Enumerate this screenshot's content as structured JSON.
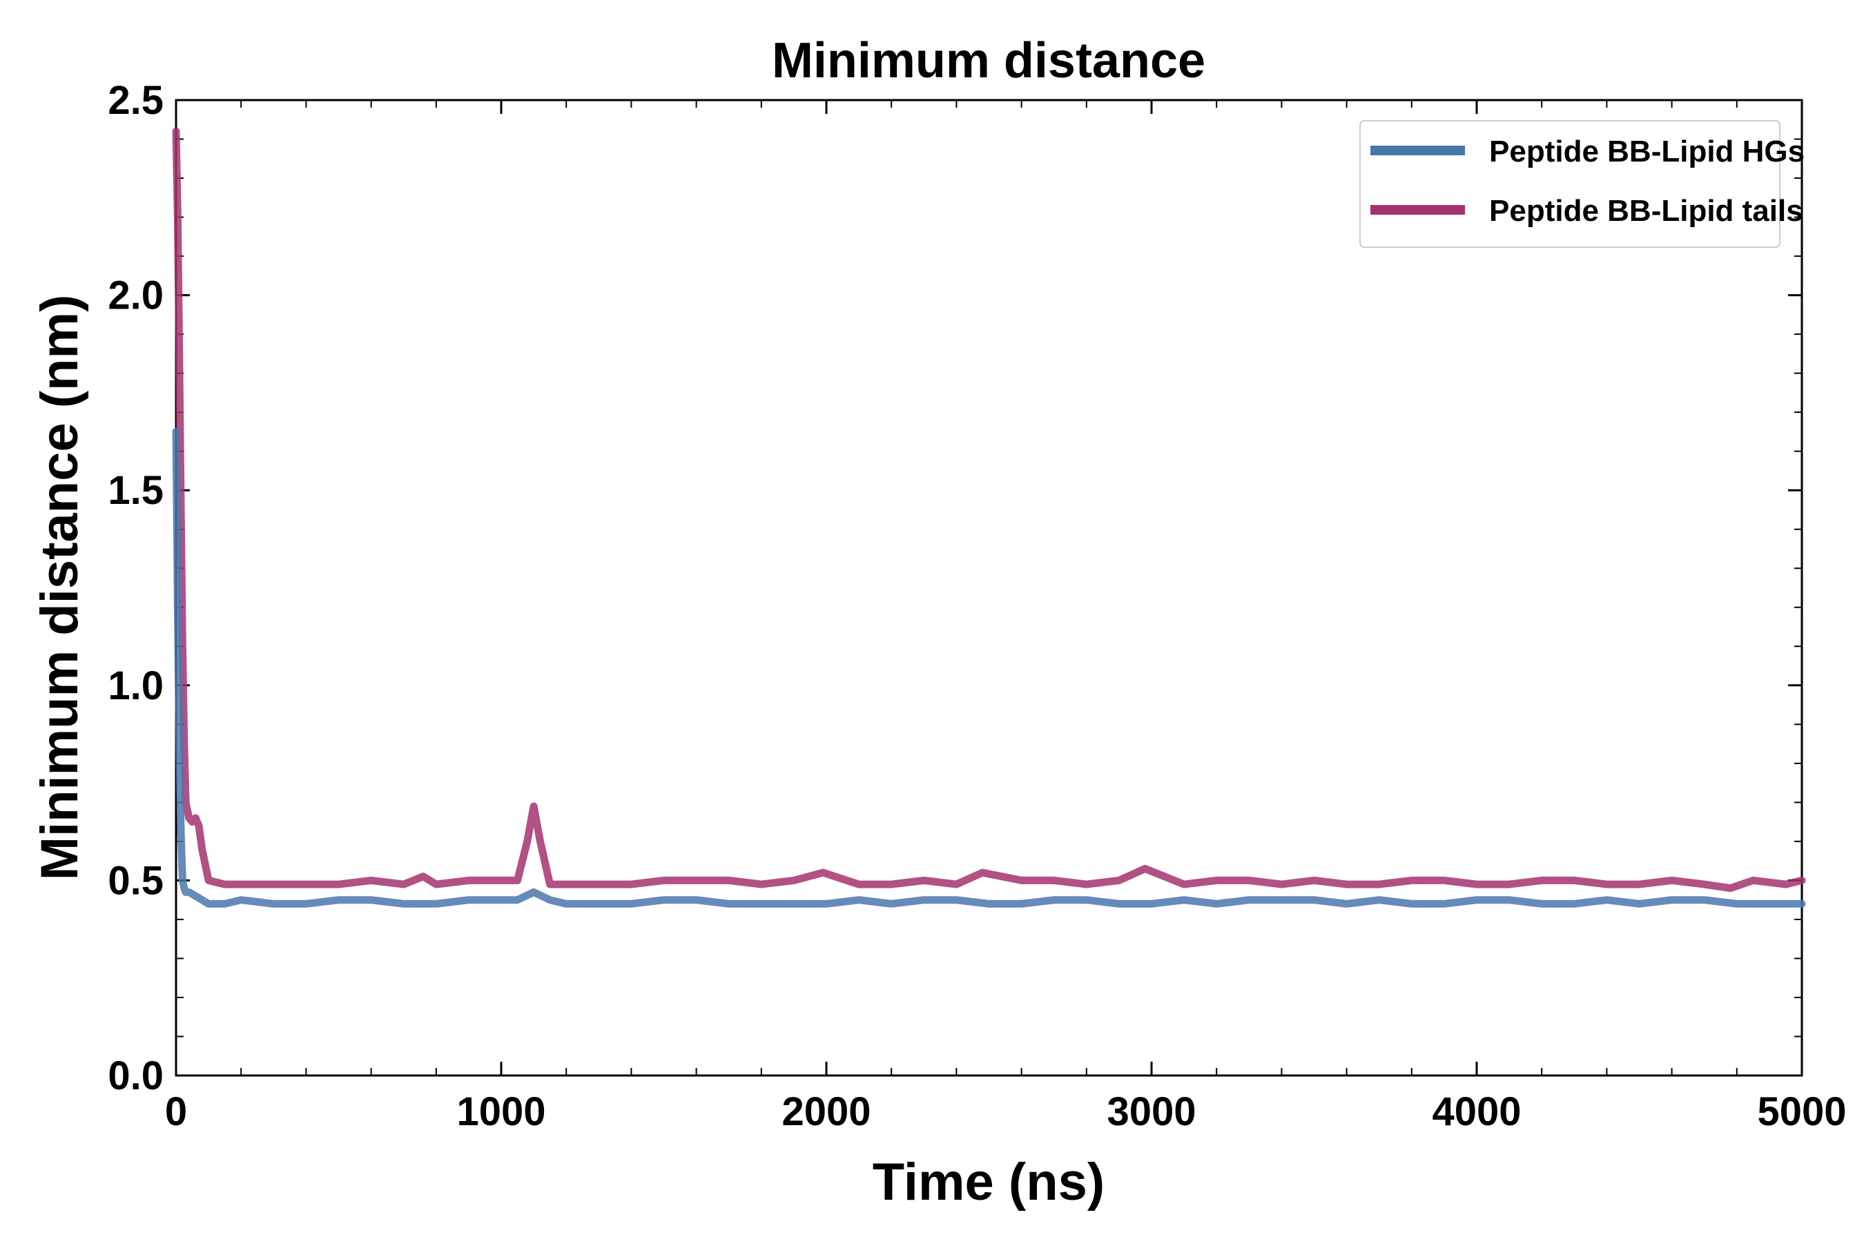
{
  "chart_data": {
    "type": "line",
    "title": "Minimum distance",
    "xlabel": "Time (ns)",
    "ylabel": "Minimum distance (nm)",
    "xlim": [
      0,
      5000
    ],
    "ylim": [
      0,
      2.5
    ],
    "x_ticks": [
      0,
      1000,
      2000,
      3000,
      4000,
      5000
    ],
    "x_tick_labels": [
      "0",
      "1000",
      "2000",
      "3000",
      "4000",
      "5000"
    ],
    "y_ticks": [
      0,
      0.5,
      1.0,
      1.5,
      2.0,
      2.5
    ],
    "y_tick_labels": [
      "0.0",
      "0.5",
      "1.0",
      "1.5",
      "2.0",
      "2.5"
    ],
    "grid": false,
    "legend_position": "top-right",
    "series": [
      {
        "name": "Peptide BB-Lipid HGs",
        "color": "#4a77ac",
        "x": [
          0,
          5,
          10,
          15,
          20,
          25,
          30,
          40,
          60,
          80,
          100,
          150,
          200,
          300,
          400,
          500,
          600,
          700,
          800,
          900,
          1000,
          1050,
          1100,
          1150,
          1200,
          1300,
          1400,
          1500,
          1600,
          1700,
          1800,
          1900,
          2000,
          2100,
          2200,
          2300,
          2400,
          2500,
          2600,
          2700,
          2800,
          2900,
          3000,
          3100,
          3200,
          3300,
          3400,
          3500,
          3600,
          3700,
          3800,
          3900,
          4000,
          4100,
          4200,
          4300,
          4400,
          4500,
          4600,
          4700,
          4800,
          4900,
          5000
        ],
        "values": [
          1.65,
          1.2,
          0.85,
          0.62,
          0.5,
          0.48,
          0.47,
          0.47,
          0.46,
          0.45,
          0.44,
          0.44,
          0.45,
          0.44,
          0.44,
          0.45,
          0.45,
          0.44,
          0.44,
          0.45,
          0.45,
          0.45,
          0.47,
          0.45,
          0.44,
          0.44,
          0.44,
          0.45,
          0.45,
          0.44,
          0.44,
          0.44,
          0.44,
          0.45,
          0.44,
          0.45,
          0.45,
          0.44,
          0.44,
          0.45,
          0.45,
          0.44,
          0.44,
          0.45,
          0.44,
          0.45,
          0.45,
          0.45,
          0.44,
          0.45,
          0.44,
          0.44,
          0.45,
          0.45,
          0.44,
          0.44,
          0.45,
          0.44,
          0.45,
          0.45,
          0.44,
          0.44,
          0.44
        ]
      },
      {
        "name": "Peptide BB-Lipid tails",
        "color": "#a3336e",
        "x": [
          0,
          5,
          10,
          15,
          20,
          25,
          30,
          40,
          50,
          60,
          70,
          80,
          100,
          150,
          200,
          250,
          300,
          400,
          500,
          600,
          700,
          760,
          800,
          900,
          1000,
          1050,
          1080,
          1100,
          1120,
          1150,
          1200,
          1300,
          1400,
          1500,
          1600,
          1700,
          1800,
          1900,
          1990,
          2100,
          2200,
          2300,
          2400,
          2480,
          2600,
          2700,
          2800,
          2900,
          2980,
          3100,
          3200,
          3300,
          3400,
          3500,
          3600,
          3700,
          3800,
          3900,
          4000,
          4100,
          4200,
          4300,
          4400,
          4500,
          4600,
          4700,
          4780,
          4850,
          4950,
          5000
        ],
        "values": [
          2.42,
          2.2,
          1.85,
          1.45,
          1.1,
          0.85,
          0.7,
          0.66,
          0.65,
          0.66,
          0.64,
          0.58,
          0.5,
          0.49,
          0.49,
          0.49,
          0.49,
          0.49,
          0.49,
          0.5,
          0.49,
          0.51,
          0.49,
          0.5,
          0.5,
          0.5,
          0.6,
          0.69,
          0.6,
          0.49,
          0.49,
          0.49,
          0.49,
          0.5,
          0.5,
          0.5,
          0.49,
          0.5,
          0.52,
          0.49,
          0.49,
          0.5,
          0.49,
          0.52,
          0.5,
          0.5,
          0.49,
          0.5,
          0.53,
          0.49,
          0.5,
          0.5,
          0.49,
          0.5,
          0.49,
          0.49,
          0.5,
          0.5,
          0.49,
          0.49,
          0.5,
          0.5,
          0.49,
          0.49,
          0.5,
          0.49,
          0.48,
          0.5,
          0.49,
          0.5
        ]
      }
    ]
  }
}
